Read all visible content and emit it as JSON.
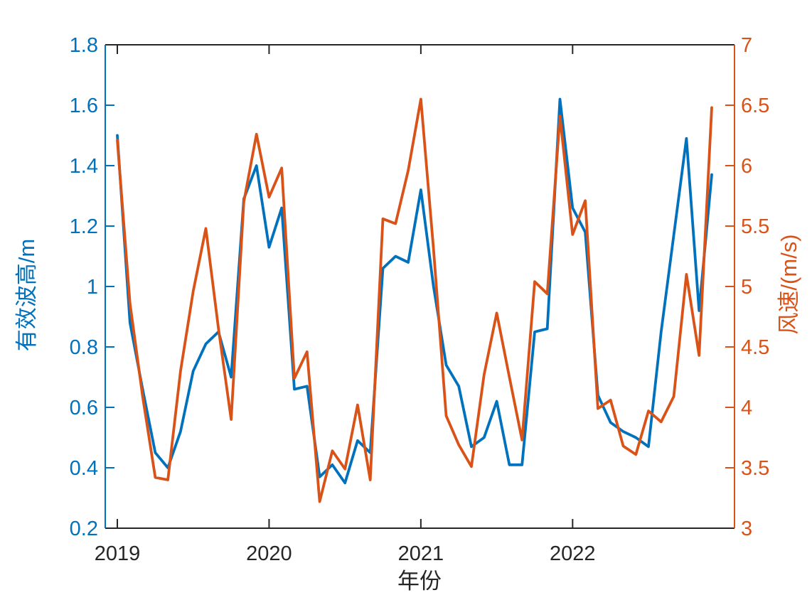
{
  "chart_data": {
    "type": "line",
    "title": "",
    "xlabel": "年份",
    "background": "#ffffff",
    "grid": false,
    "legend": "none",
    "x_axis": {
      "color": "#262626",
      "tick_labels": [
        "2019",
        "2020",
        "2021",
        "2022"
      ],
      "tick_years": [
        0,
        1,
        2,
        3
      ]
    },
    "left_axis": {
      "label": "有效波高/m",
      "color": "#0072BD",
      "min": 0.2,
      "max": 1.8,
      "ticks": [
        0.2,
        0.4,
        0.6,
        0.8,
        1.0,
        1.2,
        1.4,
        1.6,
        1.8
      ],
      "tick_labels": [
        "0.2",
        "0.4",
        "0.6",
        "0.8",
        "1",
        "1.2",
        "1.4",
        "1.6",
        "1.8"
      ]
    },
    "right_axis": {
      "label": "风速/(m/s)",
      "color": "#D95319",
      "min": 3,
      "max": 7,
      "ticks": [
        3,
        3.5,
        4,
        4.5,
        5,
        5.5,
        6,
        6.5,
        7
      ],
      "tick_labels": [
        "3",
        "3.5",
        "4",
        "4.5",
        "5",
        "5.5",
        "6",
        "6.5",
        "7"
      ]
    },
    "x": [
      "2019-01",
      "2019-02",
      "2019-03",
      "2019-04",
      "2019-05",
      "2019-06",
      "2019-07",
      "2019-08",
      "2019-09",
      "2019-10",
      "2019-11",
      "2019-12",
      "2020-01",
      "2020-02",
      "2020-03",
      "2020-04",
      "2020-05",
      "2020-06",
      "2020-07",
      "2020-08",
      "2020-09",
      "2020-10",
      "2020-11",
      "2020-12",
      "2021-01",
      "2021-02",
      "2021-03",
      "2021-04",
      "2021-05",
      "2021-06",
      "2021-07",
      "2021-08",
      "2021-09",
      "2021-10",
      "2021-11",
      "2021-12",
      "2022-01",
      "2022-02",
      "2022-03",
      "2022-04",
      "2022-05",
      "2022-06",
      "2022-07",
      "2022-08",
      "2022-09",
      "2022-10",
      "2022-11",
      "2022-12"
    ],
    "series": [
      {
        "name": "有效波高",
        "axis": "left",
        "color": "#0072BD",
        "values": [
          1.5,
          0.88,
          0.66,
          0.45,
          0.4,
          0.52,
          0.72,
          0.81,
          0.85,
          0.7,
          1.29,
          1.4,
          1.13,
          1.26,
          0.66,
          0.67,
          0.37,
          0.41,
          0.35,
          0.49,
          0.45,
          1.06,
          1.1,
          1.08,
          1.32,
          1.0,
          0.74,
          0.67,
          0.47,
          0.5,
          0.62,
          0.41,
          0.41,
          0.85,
          0.86,
          1.62,
          1.26,
          1.18,
          0.64,
          0.55,
          0.52,
          0.5,
          0.47,
          0.85,
          1.17,
          1.49,
          0.92,
          1.37
        ]
      },
      {
        "name": "风速",
        "axis": "right",
        "color": "#D95319",
        "values": [
          6.21,
          4.86,
          4.09,
          3.42,
          3.4,
          4.3,
          4.96,
          5.48,
          4.65,
          3.9,
          5.7,
          6.26,
          5.74,
          5.98,
          4.24,
          4.46,
          3.22,
          3.64,
          3.49,
          4.02,
          3.4,
          5.56,
          5.52,
          5.96,
          6.55,
          5.31,
          3.93,
          3.69,
          3.51,
          4.27,
          4.78,
          4.25,
          3.73,
          5.04,
          4.94,
          6.41,
          5.43,
          5.71,
          3.99,
          4.06,
          3.68,
          3.61,
          3.97,
          3.88,
          4.09,
          5.1,
          4.43,
          6.48
        ]
      }
    ]
  }
}
